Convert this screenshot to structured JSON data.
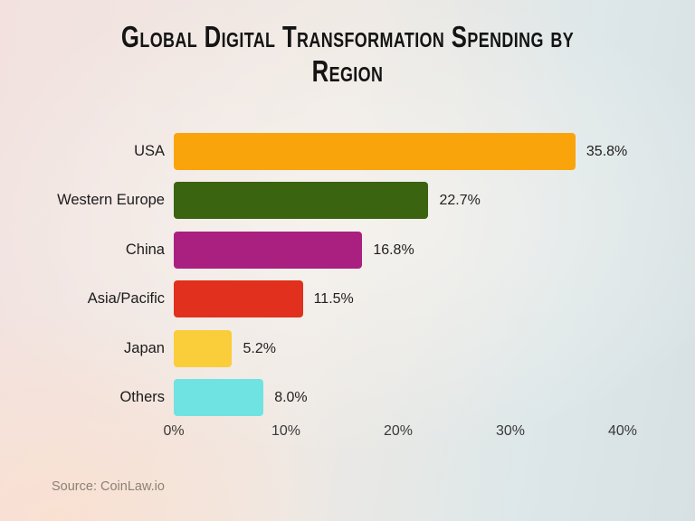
{
  "title": {
    "lines": [
      "Global Digital Transformation Spending by",
      "Region"
    ]
  },
  "source": "Source: CoinLaw.io",
  "chart_data": {
    "type": "bar",
    "orientation": "horizontal",
    "title": "Global Digital Transformation Spending by Region",
    "categories": [
      "USA",
      "Western Europe",
      "China",
      "Asia/Pacific",
      "Japan",
      "Others"
    ],
    "values": [
      35.8,
      22.7,
      16.8,
      11.5,
      5.2,
      8.0
    ],
    "value_labels": [
      "35.8%",
      "22.7%",
      "16.8%",
      "11.5%",
      "5.2%",
      "8.0%"
    ],
    "bar_colors": [
      "#FAA40B",
      "#3A6410",
      "#AA2080",
      "#E1301D",
      "#FACD3B",
      "#6FE3E1"
    ],
    "x_ticks": [
      "0%",
      "10%",
      "20%",
      "30%",
      "40%"
    ],
    "x_tick_values": [
      0,
      10,
      20,
      30,
      40
    ],
    "xlim": [
      0,
      40
    ],
    "xlabel": "",
    "ylabel": "",
    "grid": false,
    "legend": false,
    "background_gradient": [
      "#f2e1df",
      "#efe9e4",
      "#d7e1e4"
    ],
    "source": "Source: CoinLaw.io"
  }
}
